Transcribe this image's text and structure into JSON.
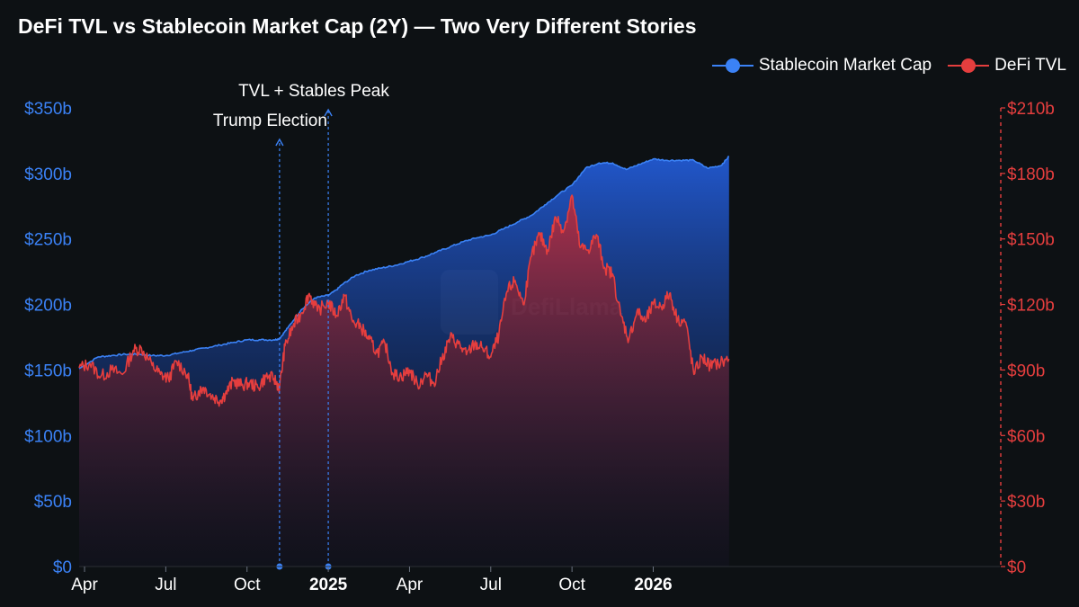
{
  "chart_data": {
    "type": "area",
    "title": "DeFi TVL vs Stablecoin Market Cap (2Y) — Two Very Different Stories",
    "x_unit": "months since 2024-04-01",
    "x_range": [
      -0.2,
      33.8
    ],
    "x_ticks": [
      {
        "label": "Apr",
        "x": 0,
        "bold": false
      },
      {
        "label": "Jul",
        "x": 3,
        "bold": false
      },
      {
        "label": "Oct",
        "x": 6,
        "bold": false
      },
      {
        "label": "2025",
        "x": 9,
        "bold": true
      },
      {
        "label": "Apr",
        "x": 12,
        "bold": false
      },
      {
        "label": "Jul",
        "x": 15,
        "bold": false
      },
      {
        "label": "Oct",
        "x": 18,
        "bold": false
      },
      {
        "label": "2026",
        "x": 21,
        "bold": true
      }
    ],
    "y_left": {
      "ticks": [
        "$0",
        "$50b",
        "$100b",
        "$150b",
        "$200b",
        "$250b",
        "$300b",
        "$350b"
      ],
      "range": [
        0,
        350
      ],
      "color": "#3b82f6"
    },
    "y_right": {
      "ticks": [
        "$0",
        "$30b",
        "$60b",
        "$90b",
        "$120b",
        "$150b",
        "$180b",
        "$210b"
      ],
      "range": [
        0,
        210
      ],
      "color": "#e53e3e"
    },
    "legend_position": "top-right",
    "series": [
      {
        "name": "Stablecoin Market Cap",
        "axis": "left",
        "color": "#3b82f6",
        "x": [
          -0.2,
          0.5,
          1.0,
          1.5,
          2.0,
          2.5,
          3.0,
          3.5,
          4.0,
          4.5,
          5.0,
          5.5,
          6.0,
          6.5,
          7.0,
          7.2,
          7.5,
          8.0,
          8.5,
          9.0,
          9.3,
          9.5,
          10.0,
          10.5,
          11.0,
          11.5,
          12.0,
          12.5,
          13.0,
          13.5,
          14.0,
          14.5,
          15.0,
          15.5,
          16.0,
          16.5,
          17.0,
          17.5,
          18.0,
          18.5,
          19.0,
          19.5,
          20.0,
          20.5,
          21.0,
          21.5,
          22.0,
          22.5,
          23.0,
          23.5,
          23.8
        ],
        "values": [
          151,
          160,
          161,
          162,
          162,
          161,
          161,
          163,
          165,
          167,
          169,
          171,
          173,
          173,
          173,
          174,
          182,
          196,
          205,
          207,
          211,
          215,
          222,
          226,
          228,
          230,
          233,
          236,
          240,
          244,
          248,
          251,
          253,
          258,
          263,
          268,
          276,
          284,
          291,
          304,
          308,
          308,
          303,
          307,
          311,
          310,
          310,
          310,
          304,
          306,
          313
        ]
      },
      {
        "name": "DeFi TVL",
        "axis": "right",
        "color": "#e53e3e",
        "x": [
          -0.2,
          0.2,
          0.6,
          1.0,
          1.4,
          1.8,
          2.1,
          2.5,
          2.8,
          3.1,
          3.4,
          3.8,
          4.0,
          4.2,
          4.4,
          4.7,
          5.0,
          5.2,
          5.5,
          5.8,
          6.1,
          6.4,
          6.7,
          7.0,
          7.2,
          7.4,
          7.7,
          8.0,
          8.3,
          8.6,
          9.0,
          9.3,
          9.6,
          9.9,
          10.2,
          10.5,
          10.8,
          11.1,
          11.4,
          11.7,
          12.0,
          12.3,
          12.6,
          12.9,
          13.2,
          13.5,
          13.8,
          14.1,
          14.4,
          14.7,
          15.0,
          15.3,
          15.6,
          15.9,
          16.2,
          16.5,
          16.8,
          17.1,
          17.4,
          17.7,
          18.0,
          18.3,
          18.6,
          18.9,
          19.2,
          19.5,
          19.8,
          20.1,
          20.4,
          20.7,
          21.0,
          21.3,
          21.6,
          21.9,
          22.2,
          22.5,
          22.8,
          23.1,
          23.4,
          23.8
        ],
        "values": [
          91,
          93,
          87,
          90,
          88,
          99,
          100,
          92,
          88,
          86,
          94,
          88,
          76,
          80,
          82,
          78,
          76,
          79,
          85,
          83,
          84,
          82,
          87,
          86,
          82,
          101,
          110,
          116,
          125,
          117,
          121,
          115,
          124,
          112,
          110,
          104,
          98,
          102,
          88,
          87,
          90,
          83,
          88,
          84,
          95,
          105,
          102,
          97,
          102,
          100,
          96,
          106,
          126,
          131,
          120,
          142,
          152,
          145,
          160,
          154,
          170,
          146,
          145,
          152,
          137,
          134,
          115,
          104,
          117,
          112,
          120,
          119,
          125,
          113,
          112,
          88,
          96,
          92,
          93,
          95
        ]
      }
    ],
    "annotations": [
      {
        "label": "Trump Election",
        "x": 7.2
      },
      {
        "label": "TVL + Stables Peak",
        "x": 9.0
      }
    ],
    "watermark": "DefiLlama"
  }
}
